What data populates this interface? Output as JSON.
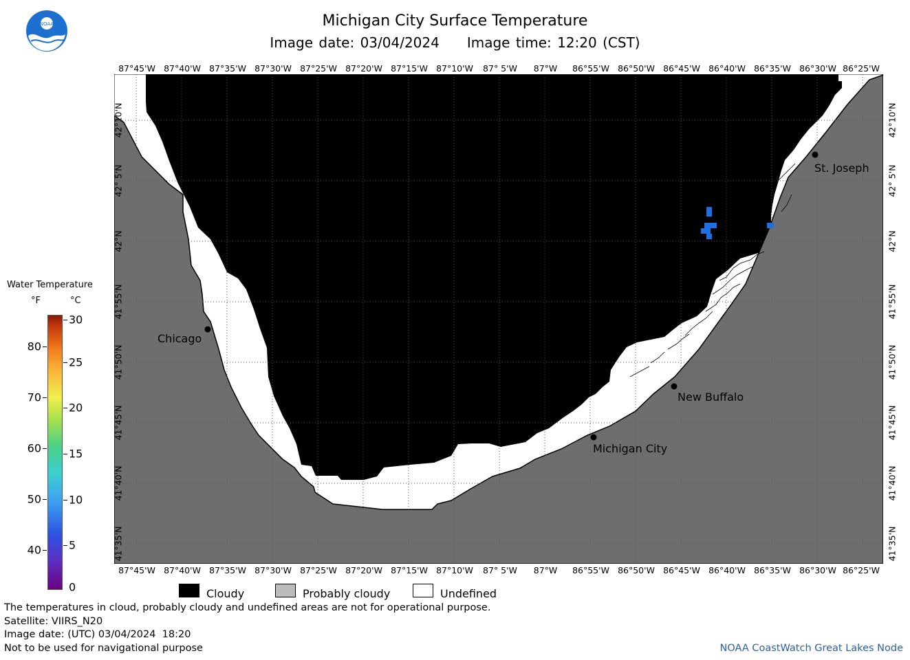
{
  "header": {
    "title": "Michigan City Surface Temperature",
    "image_date": "Image date: 03/04/2024",
    "image_time": "Image time: 12:20 (CST)"
  },
  "logo": {
    "text": "NOAA"
  },
  "map": {
    "lon_labels": [
      "87°45'W",
      "87°40'W",
      "87°35'W",
      "87°30'W",
      "87°25'W",
      "87°20'W",
      "87°15'W",
      "87°10'W",
      "87° 5'W",
      "87°W",
      "86°55'W",
      "86°50'W",
      "86°45'W",
      "86°40'W",
      "86°35'W",
      "86°30'W",
      "86°25'W"
    ],
    "lat_labels": [
      "42°10'N",
      "42° 5'N",
      "42°N",
      "41°55'N",
      "41°50'N",
      "41°45'N",
      "41°40'N",
      "41°35'N"
    ],
    "cities": [
      {
        "name": "Chicago"
      },
      {
        "name": "St. Joseph"
      },
      {
        "name": "New Buffalo"
      },
      {
        "name": "Michigan City"
      }
    ],
    "colors": {
      "land": "#6e6e6e",
      "cloud": "#000000",
      "undefined": "#ffffff",
      "water_blue": "#1e6fe0",
      "probably_cloudy": "#bcbcbc"
    }
  },
  "legend": {
    "title": "Water Temperature",
    "unit_f": "°F",
    "unit_c": "°C",
    "f_ticks": [
      "80",
      "70",
      "60",
      "50",
      "40"
    ],
    "c_ticks": [
      "30",
      "25",
      "20",
      "15",
      "10",
      "5",
      "0"
    ],
    "keys": [
      {
        "label": "Cloudy",
        "color": "#000000"
      },
      {
        "label": "Probably cloudy",
        "color": "#bcbcbc"
      },
      {
        "label": "Undefined",
        "color": "#ffffff"
      }
    ]
  },
  "footer": {
    "disclaimer": "The temperatures in cloud, probably cloudy and undefined areas are not for operational purpose.",
    "satellite": "Satellite: VIIRS_N20",
    "utc_date": "Image date: (UTC) 03/04/2024  18:20",
    "nav_warning": "Not to be used for navigational purpose",
    "credit": "NOAA CoastWatch Great Lakes Node"
  }
}
